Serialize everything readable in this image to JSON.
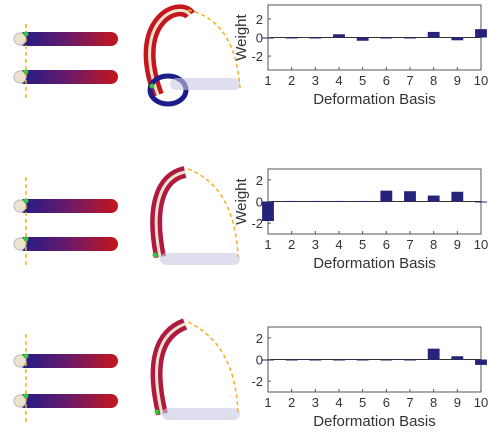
{
  "colors": {
    "bar": "#26237a",
    "rod_red": "#c4161c",
    "rod_blue": "#1c1c8a",
    "rod_cream": "#ece3cf",
    "guide": "#f2b21c",
    "marker": "#3cc43c"
  },
  "chart_data": [
    {
      "type": "bar",
      "categories": [
        "1",
        "2",
        "3",
        "4",
        "5",
        "6",
        "7",
        "8",
        "9",
        "10"
      ],
      "values": [
        -0.1,
        0,
        0,
        0.35,
        -0.35,
        0,
        0,
        0.6,
        -0.3,
        0.9
      ],
      "xlabel": "Deformation Basis",
      "ylabel": "Weight",
      "yticks": [
        "2",
        "0",
        "-2"
      ],
      "ylim": [
        -3.5,
        3.5
      ],
      "grid": false
    },
    {
      "type": "bar",
      "categories": [
        "1",
        "2",
        "3",
        "4",
        "5",
        "6",
        "7",
        "8",
        "9",
        "10"
      ],
      "values": [
        -1.8,
        0.05,
        0.05,
        0.05,
        0.05,
        1.0,
        0.95,
        0.55,
        0.9,
        0
      ],
      "xlabel": "Deformation Basis",
      "ylabel": "Weight",
      "yticks": [
        "2",
        "0",
        "-2"
      ],
      "ylim": [
        -3.0,
        3.0
      ],
      "grid": false
    },
    {
      "type": "bar",
      "categories": [
        "1",
        "2",
        "3",
        "4",
        "5",
        "6",
        "7",
        "8",
        "9",
        "10"
      ],
      "values": [
        0,
        0,
        0,
        0,
        0,
        0,
        0,
        1.0,
        0.3,
        -0.5
      ],
      "xlabel": "Deformation Basis",
      "ylabel": "",
      "yticks": [
        "2",
        "0",
        "-2"
      ],
      "ylim": [
        -3.0,
        3.0
      ],
      "grid": false
    }
  ]
}
